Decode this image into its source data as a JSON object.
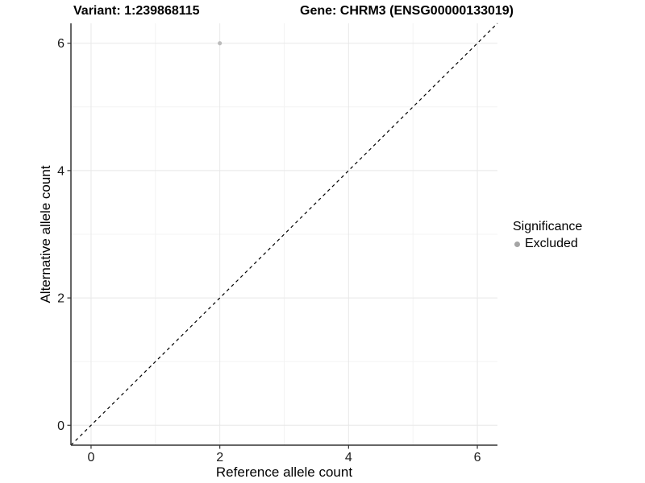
{
  "chart_data": {
    "type": "scatter",
    "title_variant": "Variant: 1:239868115",
    "title_gene": "Gene: CHRM3 (ENSG00000133019)",
    "xlabel": "Reference allele count",
    "ylabel": "Alternative allele count",
    "xlim": [
      -0.3125,
      6.3125
    ],
    "ylim": [
      -0.3125,
      6.3125
    ],
    "xticks": [
      0,
      2,
      4,
      6
    ],
    "yticks": [
      0,
      2,
      4,
      6
    ],
    "xticks_minor": [
      1,
      3,
      5
    ],
    "yticks_minor": [
      1,
      3,
      5
    ],
    "grid": "major+minor",
    "legend": {
      "position": "right",
      "title": "Significance",
      "items": [
        {
          "label": "Excluded",
          "marker": "circle",
          "color": "#a5a5a5"
        }
      ]
    },
    "points": [
      {
        "x": 2,
        "y": 6,
        "series": "Excluded",
        "color": "#bcbcbc"
      }
    ],
    "reference_line": {
      "type": "identity y=x",
      "style": "dashed",
      "color": "#000000"
    },
    "colors": {
      "grid_major": "#e8e8e8",
      "grid_minor": "#f3f3f3",
      "axis": "#333333",
      "tick_text": "#1a1a1a",
      "background": "#ffffff"
    }
  }
}
